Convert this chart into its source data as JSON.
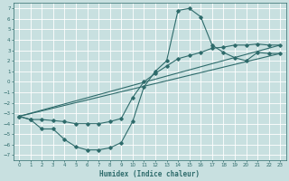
{
  "xlabel": "Humidex (Indice chaleur)",
  "bg_color": "#c8e0e0",
  "grid_color": "#ffffff",
  "line_color": "#2e6b6b",
  "xlim": [
    -0.5,
    23.5
  ],
  "ylim": [
    -7.5,
    7.5
  ],
  "xticks": [
    0,
    1,
    2,
    3,
    4,
    5,
    6,
    7,
    8,
    9,
    10,
    11,
    12,
    13,
    14,
    15,
    16,
    17,
    18,
    19,
    20,
    21,
    22,
    23
  ],
  "yticks": [
    -7,
    -6,
    -5,
    -4,
    -3,
    -2,
    -1,
    0,
    1,
    2,
    3,
    4,
    5,
    6,
    7
  ],
  "line1_x": [
    0,
    1,
    2,
    3,
    4,
    5,
    6,
    7,
    8,
    9,
    10,
    11,
    12,
    13,
    14,
    15,
    16,
    17,
    18,
    19,
    20,
    21,
    22,
    23
  ],
  "line1_y": [
    -3.3,
    -3.6,
    -4.5,
    -4.5,
    -5.5,
    -6.2,
    -6.5,
    -6.5,
    -6.3,
    -5.8,
    -3.8,
    -0.5,
    1.0,
    2.0,
    6.8,
    7.0,
    6.2,
    3.5,
    2.8,
    2.3,
    2.0,
    2.8,
    2.7,
    2.7
  ],
  "line2_x": [
    0,
    1,
    2,
    3,
    4,
    5,
    6,
    7,
    8,
    9,
    10,
    11,
    12,
    13,
    14,
    15,
    16,
    17,
    18,
    19,
    20,
    21,
    22,
    23
  ],
  "line2_y": [
    -3.3,
    -3.6,
    -3.6,
    -3.7,
    -3.8,
    -4.0,
    -4.0,
    -4.0,
    -3.8,
    -3.5,
    -1.5,
    0.0,
    0.8,
    1.5,
    2.2,
    2.5,
    2.8,
    3.2,
    3.3,
    3.5,
    3.5,
    3.6,
    3.5,
    3.5
  ],
  "line3_x": [
    0,
    23
  ],
  "line3_y": [
    -3.3,
    2.7
  ],
  "line4_x": [
    0,
    23
  ],
  "line4_y": [
    -3.3,
    3.5
  ]
}
